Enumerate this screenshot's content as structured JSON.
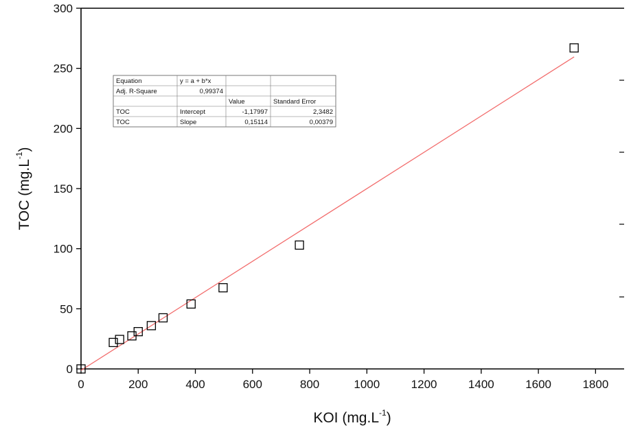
{
  "chart_data": {
    "type": "scatter",
    "xlabel": {
      "base": "KOI (mg.L",
      "sup": "-1",
      "end": ")"
    },
    "ylabel": {
      "base": "TOC (mg.L",
      "sup": "-1",
      "end": ")"
    },
    "xlim": [
      0,
      1900
    ],
    "ylim": [
      0,
      300
    ],
    "x_ticks": [
      "0",
      "200",
      "400",
      "600",
      "800",
      "1000",
      "1200",
      "1400",
      "1600",
      "1800"
    ],
    "y_ticks": [
      "0",
      "50",
      "100",
      "150",
      "200",
      "250",
      "300"
    ],
    "points": [
      {
        "x": 0,
        "y": 0
      },
      {
        "x": 113,
        "y": 22
      },
      {
        "x": 135,
        "y": 24.5
      },
      {
        "x": 178,
        "y": 27.5
      },
      {
        "x": 200,
        "y": 31
      },
      {
        "x": 246,
        "y": 36
      },
      {
        "x": 287,
        "y": 42.5
      },
      {
        "x": 385,
        "y": 54
      },
      {
        "x": 497,
        "y": 67.5
      },
      {
        "x": 764,
        "y": 103
      },
      {
        "x": 1725,
        "y": 267
      }
    ],
    "fit_line": {
      "intercept": -1.17997,
      "slope": 0.15114,
      "x_range": [
        0,
        1725
      ],
      "color": "#f26c6c"
    },
    "marker": {
      "shape": "open-square",
      "color": "#000000"
    },
    "grid": false,
    "fit_table": {
      "rows": [
        [
          "Equation",
          "y = a + b*x",
          "",
          ""
        ],
        [
          "Adj. R-Square",
          "0,99374",
          "",
          ""
        ],
        [
          "",
          "",
          "Value",
          "Standard Error"
        ],
        [
          "TOC",
          "Intercept",
          "-1,17997",
          "2,3482"
        ],
        [
          "TOC",
          "Slope",
          "0,15114",
          "0,00379"
        ]
      ]
    }
  }
}
